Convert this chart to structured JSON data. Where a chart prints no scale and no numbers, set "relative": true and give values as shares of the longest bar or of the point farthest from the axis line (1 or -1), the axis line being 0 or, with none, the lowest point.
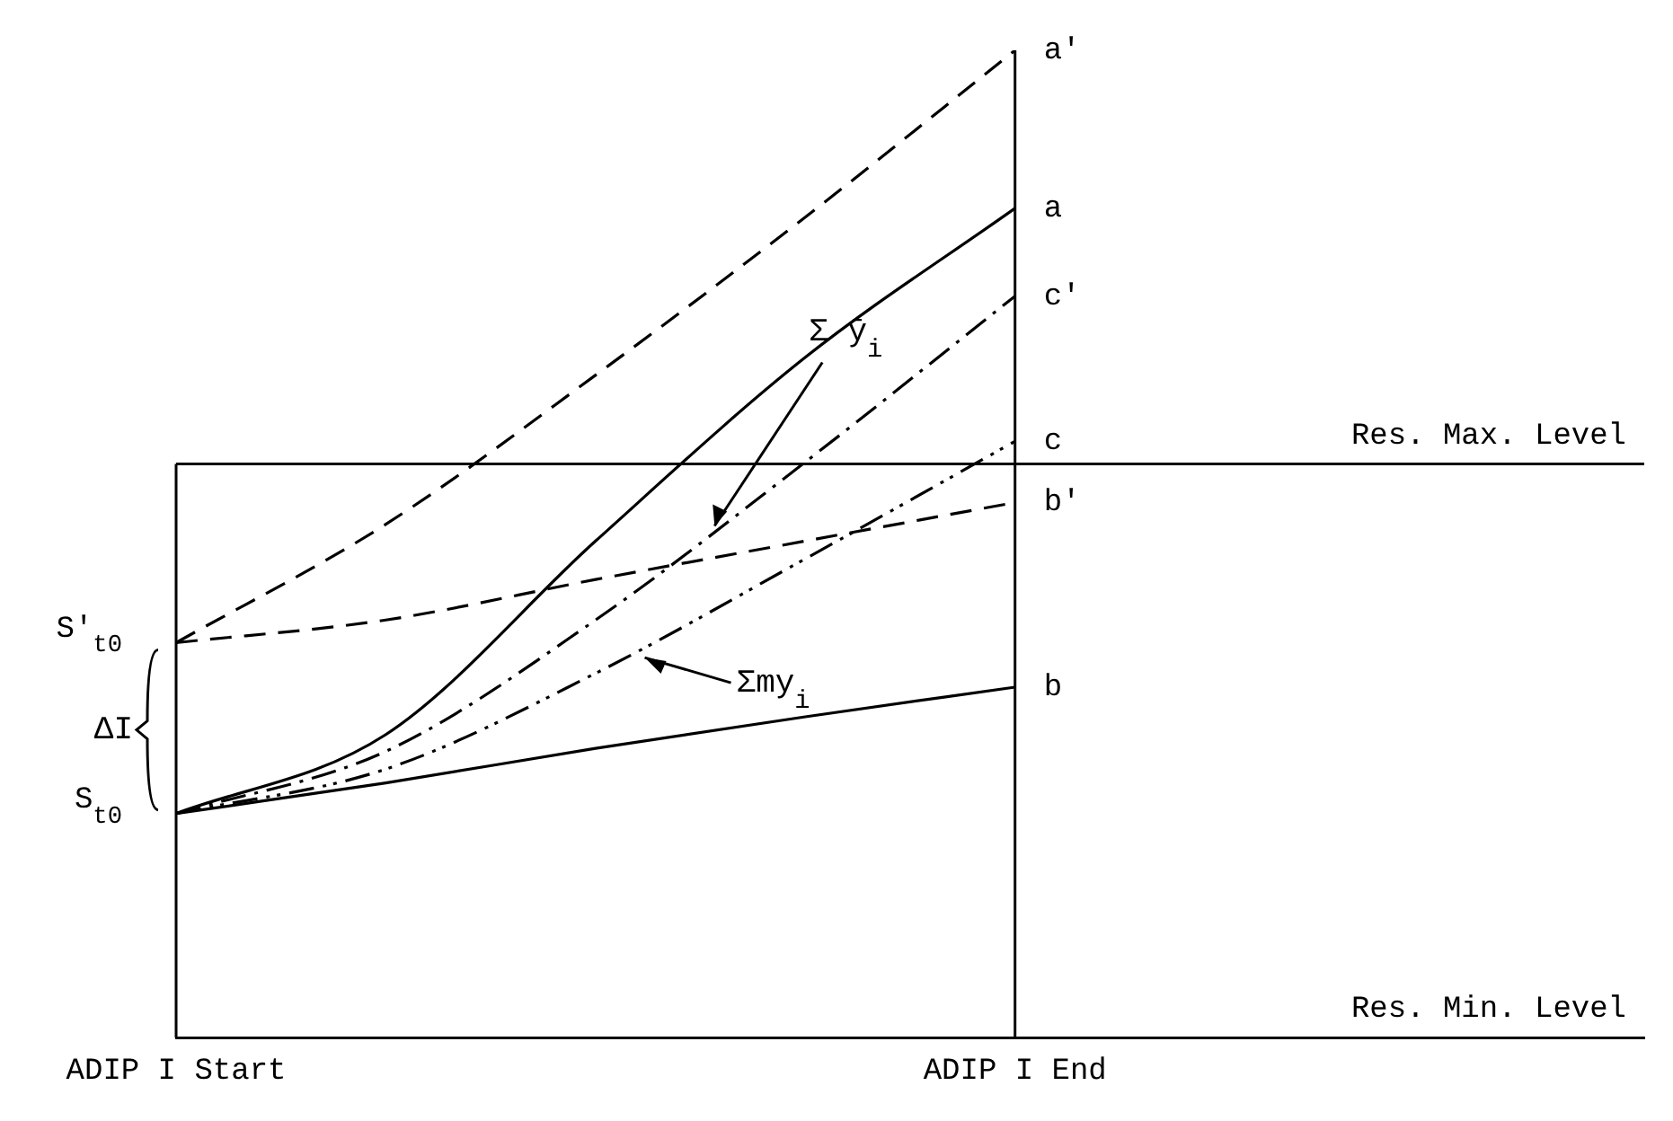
{
  "chart_data": {
    "type": "line",
    "relative": true,
    "grid": false,
    "legend": false,
    "marker": "none",
    "categories": [
      "ADIP I Start",
      null,
      null,
      null,
      "ADIP I End",
      null,
      null,
      null
    ],
    "series": [
      {
        "name": "a'",
        "color": "#000000",
        "line_style": "dashed",
        "values": [
          0.4,
          0.52,
          0.671,
          0.831,
          1.0,
          null,
          null,
          null
        ]
      },
      {
        "name": "a",
        "color": "#000000",
        "line_style": "solid",
        "values": [
          0.227,
          0.307,
          0.503,
          0.689,
          0.84,
          null,
          null,
          null
        ]
      },
      {
        "name": "c'",
        "color": "#000000",
        "line_style": "dashdot",
        "values": [
          0.227,
          0.29,
          0.423,
          0.583,
          0.751,
          null,
          null,
          null
        ]
      },
      {
        "name": "c",
        "color": "#000000",
        "line_style": "dashdotdot",
        "values": [
          0.227,
          0.272,
          0.369,
          0.485,
          0.604,
          null,
          null,
          null
        ]
      },
      {
        "name": "b'",
        "color": "#000000",
        "line_style": "dashed",
        "values": [
          0.4,
          0.423,
          0.464,
          0.503,
          0.542,
          null,
          null,
          null
        ]
      },
      {
        "name": "b",
        "color": "#000000",
        "line_style": "solid",
        "values": [
          0.227,
          0.258,
          0.293,
          0.325,
          0.355,
          null,
          null,
          null
        ]
      }
    ],
    "ref_lines": [
      {
        "axis": "y",
        "value": 0.581,
        "label": "Res. Max. Level"
      },
      {
        "axis": "x",
        "value": "ADIP I End"
      }
    ],
    "annotations": [
      {
        "text": "S'$_{t0}$",
        "x": "ADIP I Start",
        "y": 0.4
      },
      {
        "text": "S$_{t0}$",
        "x": "ADIP I Start",
        "y": 0.227
      },
      "ΔI",
      "Σ ȳ$_{i}$",
      "Σmy$_{i}$",
      "Res. Min. Level"
    ]
  }
}
